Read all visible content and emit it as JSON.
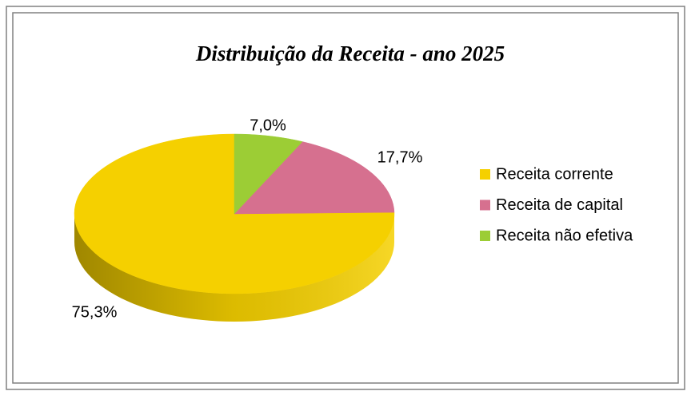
{
  "chart_data": {
    "type": "pie",
    "title": "Distribuição da Receita - ano 2025",
    "categories": [
      "Receita corrente",
      "Receita de capital",
      "Receita não efetiva"
    ],
    "values": [
      75.3,
      17.7,
      7.0
    ],
    "value_labels": [
      "75,3%",
      "17,7%",
      "7,0%"
    ],
    "colors": [
      "#f5d000",
      "#d6708f",
      "#9ccd35"
    ],
    "legend": "right"
  }
}
